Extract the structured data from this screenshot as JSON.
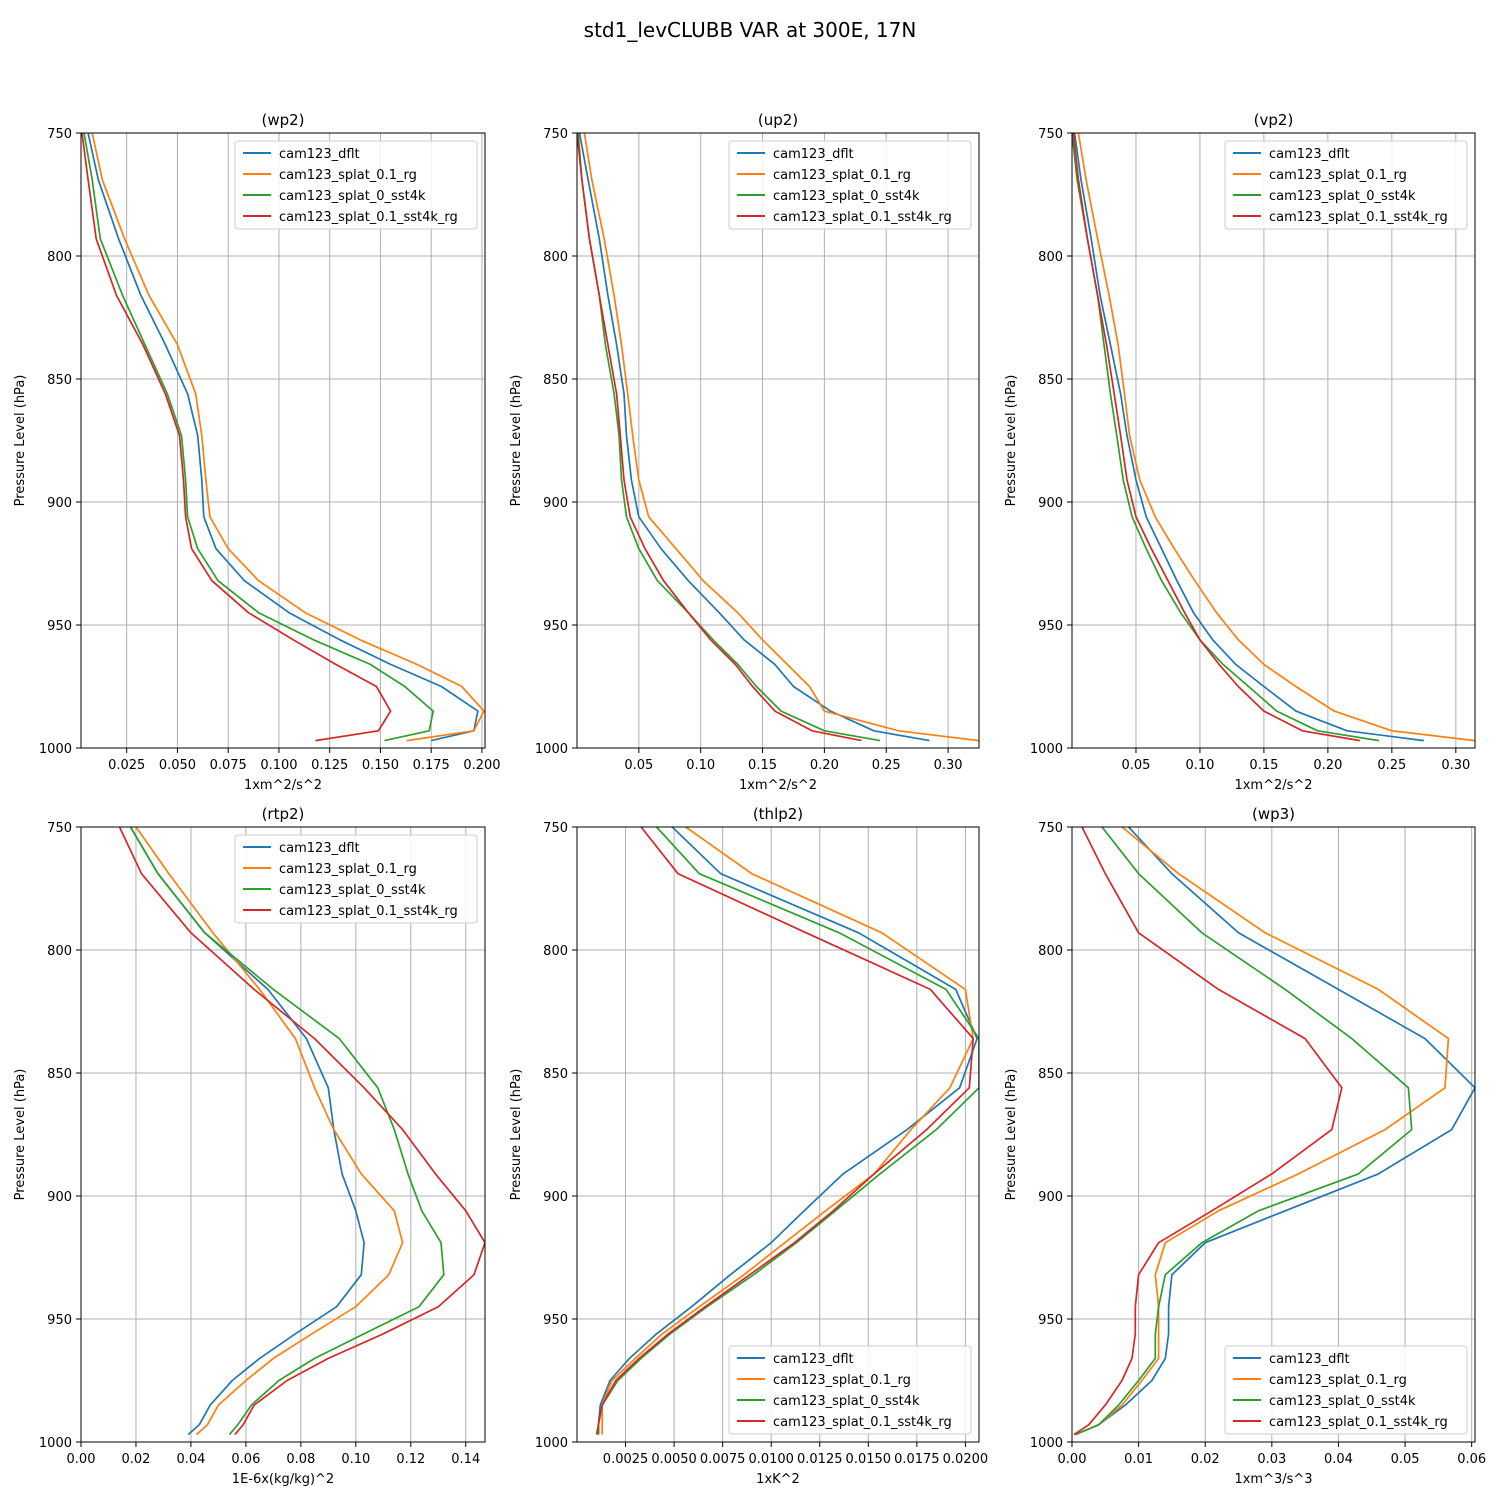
{
  "figure": {
    "title": "std1_levCLUBB VAR at 300E, 17N"
  },
  "legend_names": [
    "cam123_dflt",
    "cam123_splat_0.1_rg",
    "cam123_splat_0_sst4k",
    "cam123_splat_0.1_sst4k_rg"
  ],
  "colors": [
    "#1f77b4",
    "#ff7f0e",
    "#2ca02c",
    "#d62728"
  ],
  "chart_data": [
    {
      "type": "line",
      "title": "(wp2)",
      "xlabel": "1xm^2/s^2",
      "ylabel": "Pressure Level (hPa)",
      "xlim": [
        0.0025,
        0.2015
      ],
      "ylim": [
        1000,
        750
      ],
      "xticks": [
        0.025,
        0.05,
        0.075,
        0.1,
        0.125,
        0.15,
        0.175,
        0.2
      ],
      "xtick_labels": [
        "0.025",
        "0.050",
        "0.075",
        "0.100",
        "0.125",
        "0.150",
        "0.175",
        "0.200"
      ],
      "yticks": [
        750,
        800,
        850,
        900,
        950,
        1000
      ],
      "grid": true,
      "legend_loc": "upper right",
      "y": [
        750,
        769,
        793,
        816,
        836,
        856,
        873,
        891,
        906,
        919,
        932,
        945,
        956,
        966,
        975,
        985,
        993,
        997
      ],
      "series": [
        {
          "name": "cam123_dflt",
          "values": [
            0.006,
            0.011,
            0.021,
            0.032,
            0.044,
            0.055,
            0.06,
            0.062,
            0.063,
            0.069,
            0.083,
            0.105,
            0.13,
            0.155,
            0.18,
            0.198,
            0.196,
            0.175
          ]
        },
        {
          "name": "cam123_splat_0.1_rg",
          "values": [
            0.008,
            0.013,
            0.024,
            0.036,
            0.05,
            0.059,
            0.062,
            0.064,
            0.066,
            0.075,
            0.09,
            0.113,
            0.14,
            0.168,
            0.19,
            0.201,
            0.196,
            0.163
          ]
        },
        {
          "name": "cam123_splat_0_sst4k",
          "values": [
            0.004,
            0.008,
            0.012,
            0.023,
            0.034,
            0.045,
            0.052,
            0.054,
            0.055,
            0.06,
            0.07,
            0.09,
            0.117,
            0.145,
            0.162,
            0.176,
            0.174,
            0.152
          ]
        },
        {
          "name": "cam123_splat_0.1_sst4k_rg",
          "values": [
            0.003,
            0.006,
            0.01,
            0.02,
            0.033,
            0.044,
            0.051,
            0.053,
            0.054,
            0.057,
            0.067,
            0.085,
            0.107,
            0.128,
            0.148,
            0.155,
            0.149,
            0.118
          ]
        }
      ]
    },
    {
      "type": "line",
      "title": "(up2)",
      "xlabel": "1xm^2/s^2",
      "ylabel": "Pressure Level (hPa)",
      "xlim": [
        0.0,
        0.325
      ],
      "ylim": [
        1000,
        750
      ],
      "xticks": [
        0.05,
        0.1,
        0.15,
        0.2,
        0.25,
        0.3
      ],
      "xtick_labels": [
        "0.05",
        "0.10",
        "0.15",
        "0.20",
        "0.25",
        "0.30"
      ],
      "yticks": [
        750,
        800,
        850,
        900,
        950,
        1000
      ],
      "grid": true,
      "legend_loc": "upper right",
      "y": [
        750,
        769,
        793,
        816,
        836,
        856,
        873,
        891,
        906,
        919,
        932,
        945,
        956,
        966,
        975,
        985,
        993,
        997
      ],
      "series": [
        {
          "name": "cam123_dflt",
          "values": [
            0.002,
            0.009,
            0.018,
            0.025,
            0.032,
            0.038,
            0.04,
            0.044,
            0.05,
            0.068,
            0.09,
            0.115,
            0.135,
            0.16,
            0.175,
            0.205,
            0.24,
            0.285
          ]
        },
        {
          "name": "cam123_splat_0.1_rg",
          "values": [
            0.006,
            0.012,
            0.022,
            0.03,
            0.036,
            0.041,
            0.045,
            0.05,
            0.058,
            0.08,
            0.102,
            0.13,
            0.15,
            0.17,
            0.188,
            0.2,
            0.26,
            0.325
          ]
        },
        {
          "name": "cam123_splat_0_sst4k",
          "values": [
            0.001,
            0.004,
            0.01,
            0.018,
            0.023,
            0.03,
            0.034,
            0.036,
            0.04,
            0.05,
            0.065,
            0.09,
            0.11,
            0.13,
            0.145,
            0.165,
            0.2,
            0.245
          ]
        },
        {
          "name": "cam123_splat_0.1_sst4k_rg",
          "values": [
            0.0,
            0.004,
            0.01,
            0.018,
            0.025,
            0.032,
            0.035,
            0.038,
            0.043,
            0.055,
            0.07,
            0.09,
            0.108,
            0.128,
            0.142,
            0.16,
            0.19,
            0.23
          ]
        }
      ]
    },
    {
      "type": "line",
      "title": "(vp2)",
      "xlabel": "1xm^2/s^2",
      "ylabel": "Pressure Level (hPa)",
      "xlim": [
        0.0,
        0.315
      ],
      "ylim": [
        1000,
        750
      ],
      "xticks": [
        0.05,
        0.1,
        0.15,
        0.2,
        0.25,
        0.3
      ],
      "xtick_labels": [
        "0.05",
        "0.10",
        "0.15",
        "0.20",
        "0.25",
        "0.30"
      ],
      "yticks": [
        750,
        800,
        850,
        900,
        950,
        1000
      ],
      "grid": true,
      "legend_loc": "upper right",
      "y": [
        750,
        769,
        793,
        816,
        836,
        856,
        873,
        891,
        906,
        919,
        932,
        945,
        956,
        966,
        975,
        985,
        993,
        997
      ],
      "series": [
        {
          "name": "cam123_dflt",
          "values": [
            0.002,
            0.007,
            0.015,
            0.022,
            0.03,
            0.038,
            0.043,
            0.05,
            0.058,
            0.07,
            0.082,
            0.095,
            0.11,
            0.128,
            0.15,
            0.175,
            0.215,
            0.275
          ]
        },
        {
          "name": "cam123_splat_0.1_rg",
          "values": [
            0.005,
            0.011,
            0.02,
            0.029,
            0.036,
            0.041,
            0.045,
            0.053,
            0.065,
            0.08,
            0.096,
            0.113,
            0.13,
            0.15,
            0.175,
            0.205,
            0.25,
            0.315
          ]
        },
        {
          "name": "cam123_splat_0_sst4k",
          "values": [
            0.0,
            0.004,
            0.012,
            0.02,
            0.025,
            0.03,
            0.035,
            0.04,
            0.047,
            0.058,
            0.07,
            0.085,
            0.1,
            0.118,
            0.138,
            0.16,
            0.192,
            0.24
          ]
        },
        {
          "name": "cam123_splat_0.1_sst4k_rg",
          "values": [
            0.001,
            0.005,
            0.012,
            0.02,
            0.027,
            0.033,
            0.038,
            0.043,
            0.05,
            0.062,
            0.075,
            0.088,
            0.1,
            0.115,
            0.13,
            0.15,
            0.18,
            0.225
          ]
        }
      ]
    },
    {
      "type": "line",
      "title": "(rtp2)",
      "xlabel": "1E-6x(kg/kg)^2",
      "ylabel": "Pressure Level (hPa)",
      "xlim": [
        0.0,
        0.147
      ],
      "ylim": [
        1000,
        750
      ],
      "xticks": [
        0.0,
        0.02,
        0.04,
        0.06,
        0.08,
        0.1,
        0.12,
        0.14
      ],
      "xtick_labels": [
        "0.00",
        "0.02",
        "0.04",
        "0.06",
        "0.08",
        "0.10",
        "0.12",
        "0.14"
      ],
      "yticks": [
        750,
        800,
        850,
        900,
        950,
        1000
      ],
      "grid": true,
      "legend_loc": "upper right",
      "y": [
        750,
        769,
        793,
        816,
        836,
        856,
        873,
        891,
        906,
        919,
        932,
        945,
        956,
        966,
        975,
        985,
        993,
        997
      ],
      "series": [
        {
          "name": "cam123_dflt",
          "values": [
            0.018,
            0.028,
            0.045,
            0.068,
            0.082,
            0.09,
            0.092,
            0.095,
            0.1,
            0.103,
            0.102,
            0.093,
            0.078,
            0.065,
            0.055,
            0.047,
            0.043,
            0.039
          ]
        },
        {
          "name": "cam123_splat_0.1_rg",
          "values": [
            0.02,
            0.032,
            0.048,
            0.065,
            0.078,
            0.085,
            0.092,
            0.102,
            0.114,
            0.117,
            0.112,
            0.1,
            0.084,
            0.07,
            0.06,
            0.05,
            0.046,
            0.042
          ]
        },
        {
          "name": "cam123_splat_0_sst4k",
          "values": [
            0.018,
            0.028,
            0.045,
            0.07,
            0.094,
            0.108,
            0.114,
            0.119,
            0.124,
            0.131,
            0.132,
            0.123,
            0.103,
            0.085,
            0.072,
            0.062,
            0.057,
            0.054
          ]
        },
        {
          "name": "cam123_splat_0.1_sst4k_rg",
          "values": [
            0.014,
            0.022,
            0.04,
            0.063,
            0.085,
            0.103,
            0.117,
            0.129,
            0.14,
            0.147,
            0.143,
            0.13,
            0.11,
            0.09,
            0.075,
            0.063,
            0.059,
            0.056
          ]
        }
      ]
    },
    {
      "type": "line",
      "title": "(thlp2)",
      "xlabel": "1xK^2",
      "ylabel": "Pressure Level (hPa)",
      "xlim": [
        0.0,
        0.0207
      ],
      "ylim": [
        1000,
        750
      ],
      "xticks": [
        0.0025,
        0.005,
        0.0075,
        0.01,
        0.0125,
        0.015,
        0.0175,
        0.02
      ],
      "xtick_labels": [
        "0.0025",
        "0.0050",
        "0.0075",
        "0.0100",
        "0.0125",
        "0.0150",
        "0.0175",
        "0.0200"
      ],
      "yticks": [
        750,
        800,
        850,
        900,
        950,
        1000
      ],
      "grid": true,
      "legend_loc": "lower right",
      "y": [
        750,
        769,
        793,
        816,
        836,
        856,
        873,
        891,
        906,
        919,
        932,
        945,
        956,
        966,
        975,
        985,
        993,
        997
      ],
      "series": [
        {
          "name": "cam123_dflt",
          "values": [
            0.0049,
            0.0074,
            0.0145,
            0.0195,
            0.0206,
            0.0197,
            0.017,
            0.0137,
            0.0117,
            0.01,
            0.0079,
            0.0059,
            0.0041,
            0.0027,
            0.0017,
            0.0012,
            0.0011,
            0.0011
          ]
        },
        {
          "name": "cam123_splat_0.1_rg",
          "values": [
            0.0056,
            0.009,
            0.0157,
            0.02,
            0.0204,
            0.0192,
            0.0172,
            0.0153,
            0.0128,
            0.0107,
            0.0086,
            0.0063,
            0.0044,
            0.003,
            0.0018,
            0.0013,
            0.0013,
            0.0013
          ]
        },
        {
          "name": "cam123_splat_0_sst4k",
          "values": [
            0.0041,
            0.0063,
            0.0135,
            0.019,
            0.0207,
            0.0207,
            0.0185,
            0.0156,
            0.0133,
            0.0113,
            0.0091,
            0.0067,
            0.0048,
            0.0033,
            0.0021,
            0.0013,
            0.0011,
            0.001
          ]
        },
        {
          "name": "cam123_splat_0.1_sst4k_rg",
          "values": [
            0.0033,
            0.0052,
            0.0118,
            0.0182,
            0.0204,
            0.0202,
            0.018,
            0.0153,
            0.0132,
            0.0112,
            0.0089,
            0.0066,
            0.0047,
            0.0032,
            0.002,
            0.0013,
            0.0011,
            0.0011
          ]
        }
      ]
    },
    {
      "type": "line",
      "title": "(wp3)",
      "xlabel": "1xm^3/s^3",
      "ylabel": "Pressure Level (hPa)",
      "xlim": [
        0.0,
        0.0605
      ],
      "ylim": [
        1000,
        750
      ],
      "xticks": [
        0.0,
        0.01,
        0.02,
        0.03,
        0.04,
        0.05,
        0.06
      ],
      "xtick_labels": [
        "0.00",
        "0.01",
        "0.02",
        "0.03",
        "0.04",
        "0.05",
        "0.06"
      ],
      "yticks": [
        750,
        800,
        850,
        900,
        950,
        1000
      ],
      "grid": true,
      "legend_loc": "lower right",
      "y": [
        750,
        769,
        793,
        816,
        836,
        856,
        873,
        891,
        906,
        919,
        932,
        945,
        956,
        966,
        975,
        985,
        993,
        997
      ],
      "series": [
        {
          "name": "cam123_dflt",
          "values": [
            0.0085,
            0.015,
            0.025,
            0.04,
            0.053,
            0.0605,
            0.057,
            0.046,
            0.032,
            0.02,
            0.015,
            0.0145,
            0.0145,
            0.014,
            0.012,
            0.008,
            0.004,
            0.0005
          ]
        },
        {
          "name": "cam123_splat_0.1_rg",
          "values": [
            0.0075,
            0.016,
            0.029,
            0.046,
            0.0565,
            0.056,
            0.047,
            0.034,
            0.022,
            0.014,
            0.0125,
            0.013,
            0.013,
            0.013,
            0.0105,
            0.0075,
            0.004,
            0.0005
          ]
        },
        {
          "name": "cam123_splat_0_sst4k",
          "values": [
            0.0045,
            0.01,
            0.0195,
            0.032,
            0.042,
            0.0505,
            0.051,
            0.043,
            0.028,
            0.0195,
            0.014,
            0.013,
            0.0125,
            0.0125,
            0.01,
            0.007,
            0.004,
            0.0005
          ]
        },
        {
          "name": "cam123_splat_0.1_sst4k_rg",
          "values": [
            0.0015,
            0.005,
            0.01,
            0.022,
            0.035,
            0.0405,
            0.039,
            0.03,
            0.021,
            0.013,
            0.01,
            0.0095,
            0.0095,
            0.009,
            0.0075,
            0.005,
            0.0025,
            0.0003
          ]
        }
      ]
    }
  ]
}
